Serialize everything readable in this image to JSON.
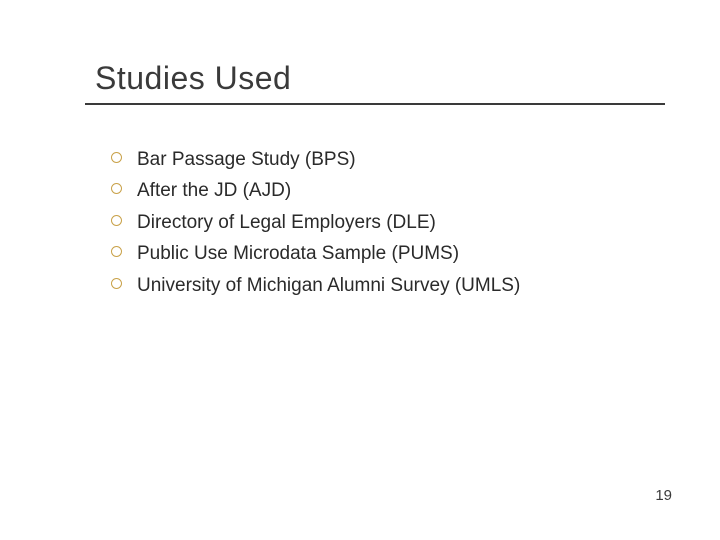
{
  "title": "Studies Used",
  "bullet_color": "#c9a24a",
  "text_color": "#2a2a2a",
  "title_color": "#3a3a3a",
  "rule_color": "#3a3a3a",
  "items": [
    "Bar Passage Study (BPS)",
    "After the JD (AJD)",
    "Directory of Legal Employers (DLE)",
    "Public Use Microdata Sample (PUMS)",
    "University of Michigan Alumni Survey (UMLS)"
  ],
  "page_number": "19"
}
